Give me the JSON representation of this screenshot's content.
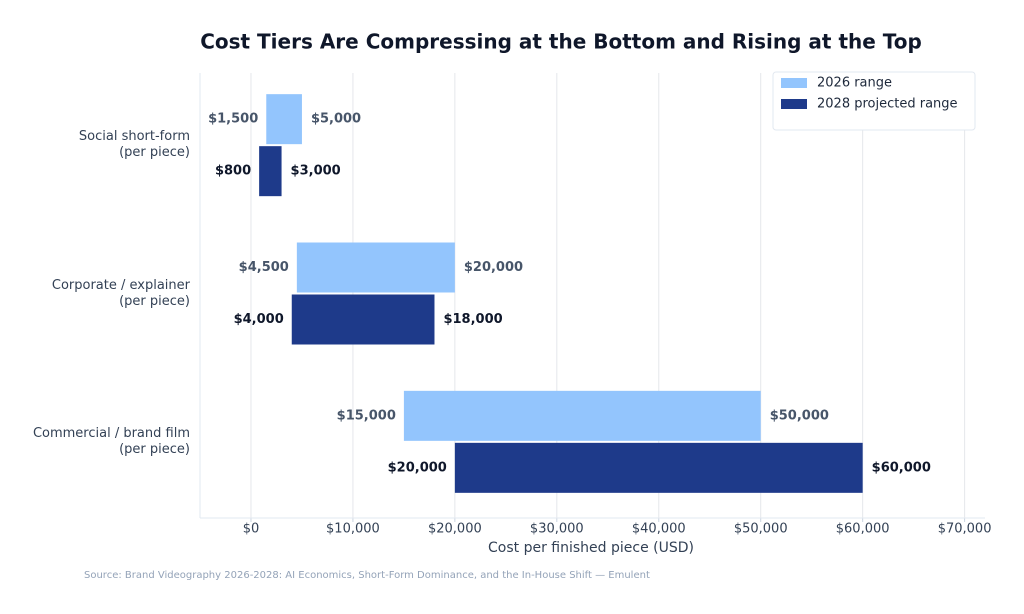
{
  "chart_data": {
    "type": "range_bar",
    "title": "Cost Tiers Are Compressing at the Bottom and Rising at the Top",
    "categories": [
      "Social short-form\n(per piece)",
      "Corporate / explainer\n(per piece)",
      "Commercial / brand film\n(per piece)"
    ],
    "series": [
      {
        "name": "2026 range",
        "color": "#93c5fd",
        "label_color": "#475569",
        "values": [
          [
            1500,
            5000
          ],
          [
            4500,
            20000
          ],
          [
            15000,
            50000
          ]
        ],
        "value_labels": [
          [
            "$1,500",
            "$5,000"
          ],
          [
            "$4,500",
            "$20,000"
          ],
          [
            "$15,000",
            "$50,000"
          ]
        ]
      },
      {
        "name": "2028 projected range",
        "color": "#1e3a8a",
        "label_color": "#0f172a",
        "values": [
          [
            800,
            3000
          ],
          [
            4000,
            18000
          ],
          [
            20000,
            60000
          ]
        ],
        "value_labels": [
          [
            "$800",
            "$3,000"
          ],
          [
            "$4,000",
            "$18,000"
          ],
          [
            "$20,000",
            "$60,000"
          ]
        ]
      }
    ],
    "xlim": [
      -5000,
      72000
    ],
    "xticks": [
      {
        "value": 0,
        "label": "$0"
      },
      {
        "value": 10000,
        "label": "$10,000"
      },
      {
        "value": 20000,
        "label": "$20,000"
      },
      {
        "value": 30000,
        "label": "$30,000"
      },
      {
        "value": 40000,
        "label": "$40,000"
      },
      {
        "value": 50000,
        "label": "$50,000"
      },
      {
        "value": 60000,
        "label": "$60,000"
      },
      {
        "value": 70000,
        "label": "$70,000"
      }
    ],
    "xlabel": "Cost per finished piece (USD)",
    "grid": true,
    "legend": "upper right",
    "source": "Source: Brand Videography 2026-2028: AI Economics, Short-Form Dominance, and the In-House Shift — Emulent"
  }
}
